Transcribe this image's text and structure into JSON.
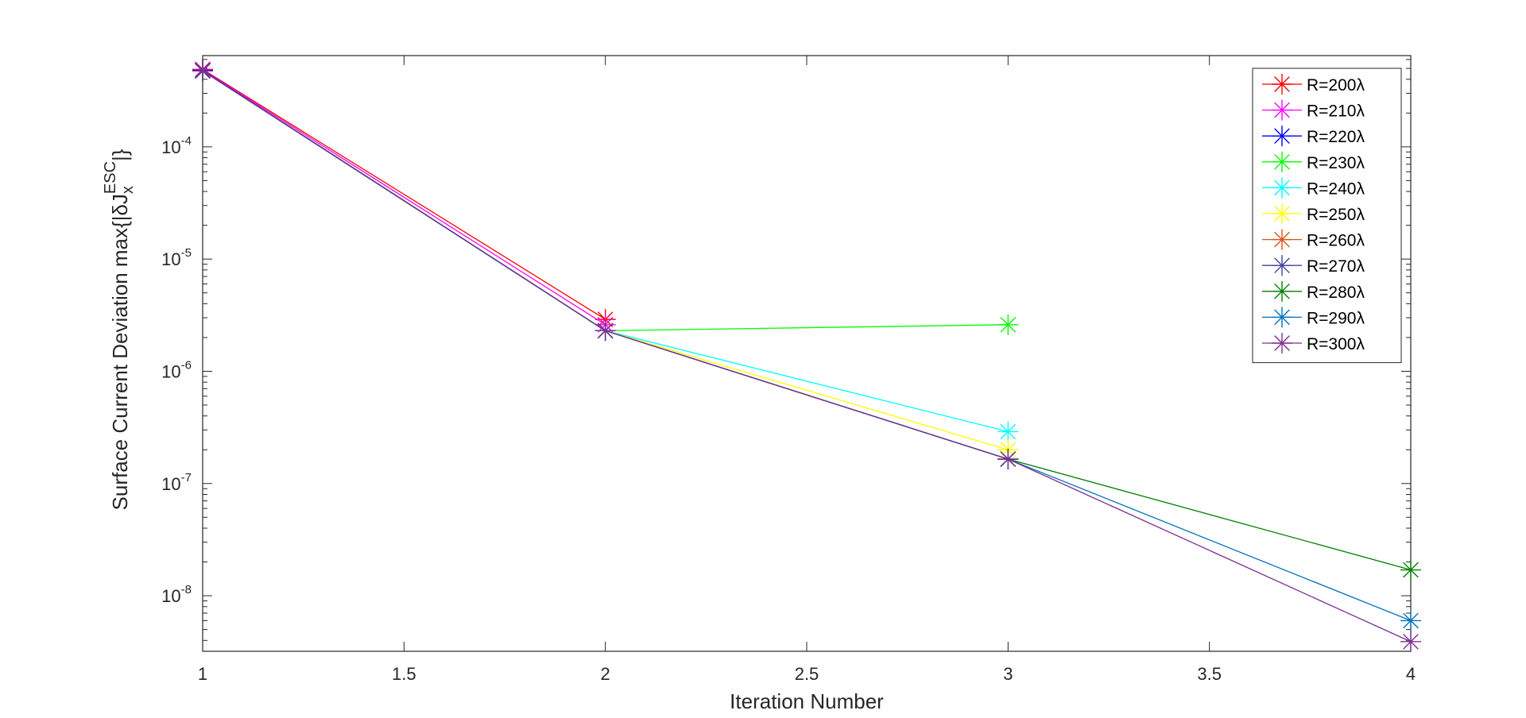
{
  "chart_data": {
    "type": "line",
    "xlabel": "Iteration Number",
    "ylabel": {
      "prefix": "Surface Current Deviation max{|",
      "delta": "δ",
      "J": "J",
      "subscript": "x",
      "superscript": "ESC",
      "suffix": "|}"
    },
    "xlim": [
      1,
      4
    ],
    "ylim": [
      3.2e-09,
      0.00065
    ],
    "yscale": "log",
    "grid": false,
    "legend_position": "top-right",
    "xticks": [
      {
        "value": 1,
        "label": "1"
      },
      {
        "value": 1.5,
        "label": "1.5"
      },
      {
        "value": 2,
        "label": "2"
      },
      {
        "value": 2.5,
        "label": "2.5"
      },
      {
        "value": 3,
        "label": "3"
      },
      {
        "value": 3.5,
        "label": "3.5"
      },
      {
        "value": 4,
        "label": "4"
      }
    ],
    "yticks": [
      {
        "value": 1e-08,
        "base": "10",
        "exp": "-8"
      },
      {
        "value": 1e-07,
        "base": "10",
        "exp": "-7"
      },
      {
        "value": 1e-06,
        "base": "10",
        "exp": "-6"
      },
      {
        "value": 1e-05,
        "base": "10",
        "exp": "-5"
      },
      {
        "value": 0.0001,
        "base": "10",
        "exp": "-4"
      }
    ],
    "marker": "asterisk",
    "series": [
      {
        "name": "R=200λ",
        "color": "#ff0000",
        "x": [
          1,
          2
        ],
        "y": [
          0.00049,
          2.9e-06
        ]
      },
      {
        "name": "R=210λ",
        "color": "#ff00ff",
        "x": [
          1,
          2
        ],
        "y": [
          0.000485,
          2.6e-06
        ]
      },
      {
        "name": "R=220λ",
        "color": "#0000ff",
        "x": [
          1,
          2
        ],
        "y": [
          0.00048,
          2.3e-06
        ]
      },
      {
        "name": "R=230λ",
        "color": "#00ff00",
        "x": [
          1,
          2,
          3
        ],
        "y": [
          0.000475,
          2.3e-06,
          2.6e-06
        ]
      },
      {
        "name": "R=240λ",
        "color": "#00ffff",
        "x": [
          1,
          2,
          3
        ],
        "y": [
          0.000475,
          2.3e-06,
          2.9e-07
        ]
      },
      {
        "name": "R=250λ",
        "color": "#ffff00",
        "x": [
          1,
          2,
          3
        ],
        "y": [
          0.000475,
          2.3e-06,
          2e-07
        ]
      },
      {
        "name": "R=260λ",
        "color": "#d95319",
        "x": [
          1,
          2,
          3
        ],
        "y": [
          0.000475,
          2.3e-06,
          1.65e-07
        ]
      },
      {
        "name": "R=270λ",
        "color": "#4040a0",
        "x": [
          1,
          2,
          3
        ],
        "y": [
          0.000475,
          2.3e-06,
          1.65e-07
        ]
      },
      {
        "name": "R=280λ",
        "color": "#008000",
        "x": [
          1,
          2,
          3,
          4
        ],
        "y": [
          0.000475,
          2.3e-06,
          1.65e-07,
          1.7e-08
        ]
      },
      {
        "name": "R=290λ",
        "color": "#0072bd",
        "x": [
          1,
          2,
          3,
          4
        ],
        "y": [
          0.000475,
          2.3e-06,
          1.65e-07,
          6e-09
        ]
      },
      {
        "name": "R=300λ",
        "color": "#7e2f8e",
        "x": [
          1,
          2,
          3,
          4
        ],
        "y": [
          0.000475,
          2.3e-06,
          1.65e-07,
          3.9e-09
        ]
      }
    ]
  }
}
